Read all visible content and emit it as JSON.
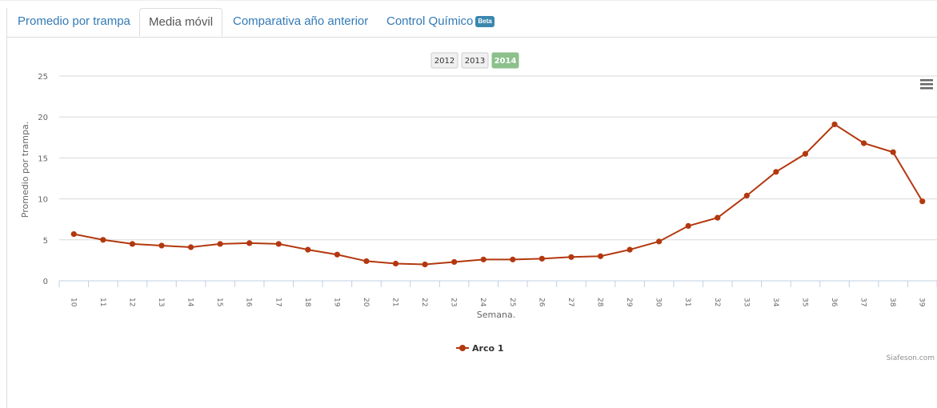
{
  "tabs": [
    {
      "label": "Promedio por trampa"
    },
    {
      "label": "Media móvil"
    },
    {
      "label": "Comparativa año anterior"
    },
    {
      "label": "Control Químico",
      "badge": "Beta"
    }
  ],
  "active_tab": "Media móvil",
  "year_buttons": [
    {
      "label": "2012",
      "selected": false
    },
    {
      "label": "2013",
      "selected": false
    },
    {
      "label": "2014",
      "selected": true
    }
  ],
  "menu_icon": "hamburger-menu-icon",
  "credits": "Siafeson.com",
  "colors": {
    "series": "#b3380f",
    "selected_button": "#8cc08c",
    "link": "#337ab7",
    "badge": "#3a87ad"
  },
  "chart_data": {
    "type": "line",
    "title": "",
    "xlabel": "Semana.",
    "ylabel": "Promedio por trampa.",
    "ylim": [
      0,
      25
    ],
    "yticks": [
      0,
      5,
      10,
      15,
      20,
      25
    ],
    "categories": [
      "10",
      "11",
      "12",
      "13",
      "14",
      "15",
      "16",
      "17",
      "18",
      "19",
      "20",
      "21",
      "22",
      "23",
      "24",
      "25",
      "26",
      "27",
      "28",
      "29",
      "30",
      "31",
      "32",
      "33",
      "34",
      "35",
      "36",
      "37",
      "38",
      "39"
    ],
    "series": [
      {
        "name": "Arco 1",
        "values": [
          5.7,
          5.0,
          4.5,
          4.3,
          4.1,
          4.5,
          4.6,
          4.5,
          3.8,
          3.2,
          2.4,
          2.1,
          2.0,
          2.3,
          2.6,
          2.6,
          2.7,
          2.9,
          3.0,
          3.8,
          4.8,
          6.7,
          7.7,
          10.4,
          13.3,
          15.5,
          19.1,
          16.8,
          15.7,
          9.7
        ]
      }
    ],
    "grid": true,
    "legend": "bottom-center"
  }
}
